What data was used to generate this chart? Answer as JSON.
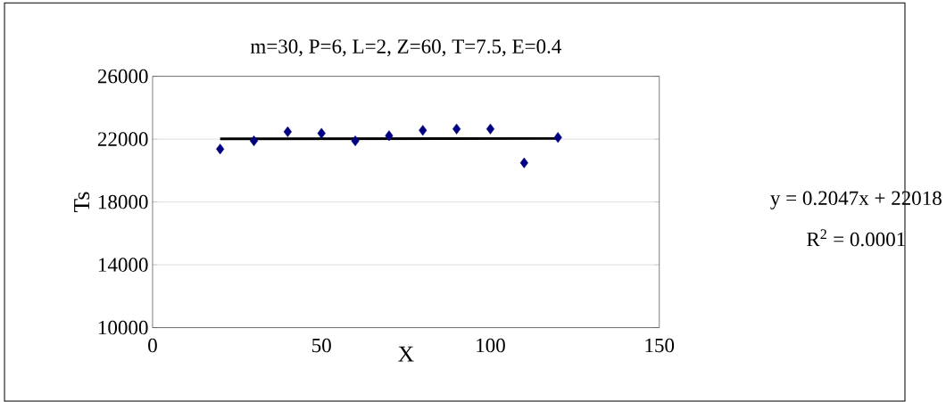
{
  "chart_data": {
    "type": "scatter",
    "title": "m=30, P=6, L=2, Z=60, T=7.5, E=0.4",
    "xlabel": "X",
    "ylabel": "Ts",
    "series": [
      {
        "type": "scatter",
        "color": "#000080",
        "marker": "diamond",
        "x": [
          20,
          30,
          40,
          50,
          60,
          70,
          80,
          90,
          100,
          110,
          120
        ],
        "values": [
          21370,
          21890,
          22470,
          22370,
          21890,
          22220,
          22560,
          22650,
          22650,
          20490,
          22110
        ]
      },
      {
        "type": "line",
        "color": "#000000",
        "x": [
          20,
          120
        ],
        "values": [
          22020,
          22040
        ]
      }
    ],
    "xlim": [
      0,
      150
    ],
    "xticks": [
      0,
      50,
      100,
      150
    ],
    "ylim": [
      10000,
      26000
    ],
    "yticks": [
      10000,
      14000,
      18000,
      22000,
      26000
    ],
    "grid": "y",
    "annotations": [
      "y = 0.2047x + 22018",
      "R$^{2}$ = 0.0001"
    ]
  }
}
